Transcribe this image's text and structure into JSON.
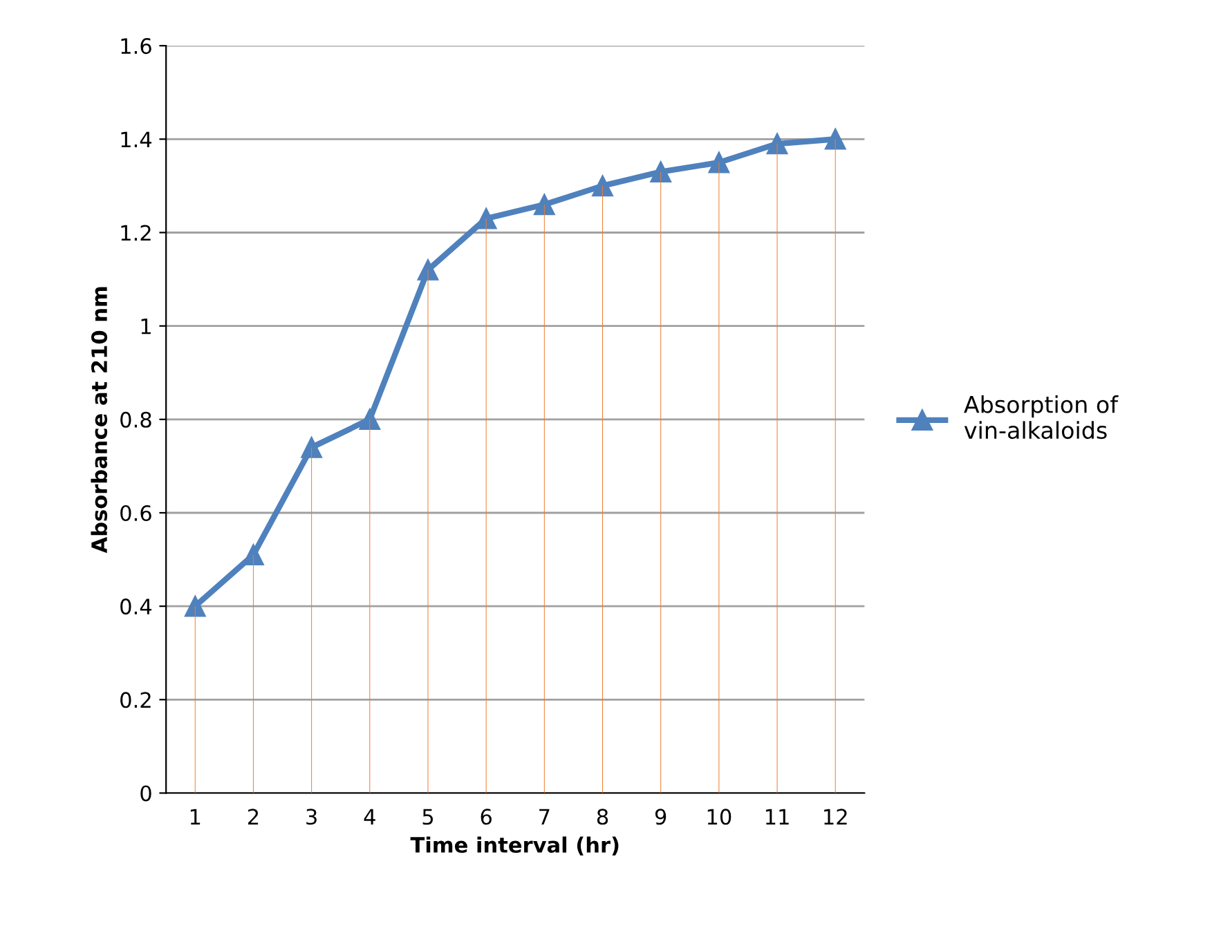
{
  "chart_data": {
    "type": "line",
    "xlabel": "Time interval (hr)",
    "ylabel": "Absorbance at 210 nm",
    "categories": [
      "1",
      "2",
      "3",
      "4",
      "5",
      "6",
      "7",
      "8",
      "9",
      "10",
      "11",
      "12"
    ],
    "series": [
      {
        "type": "bar",
        "color": "#ed7d31",
        "values": [
          0.4,
          0.51,
          0.74,
          0.8,
          1.12,
          1.23,
          1.26,
          1.3,
          1.33,
          1.35,
          1.39,
          1.4
        ]
      },
      {
        "name": "Absorption of\nvin-alkaloids",
        "color": "#4f81bd",
        "marker": "triangle",
        "values": [
          0.4,
          0.51,
          0.74,
          0.8,
          1.12,
          1.23,
          1.26,
          1.3,
          1.33,
          1.35,
          1.39,
          1.4
        ]
      }
    ],
    "ylim": [
      0,
      1.6
    ],
    "yticks": [
      0,
      0.2,
      0.4,
      0.6,
      0.8,
      1,
      1.2,
      1.4,
      1.6
    ],
    "grid": "y",
    "legend": "right"
  }
}
